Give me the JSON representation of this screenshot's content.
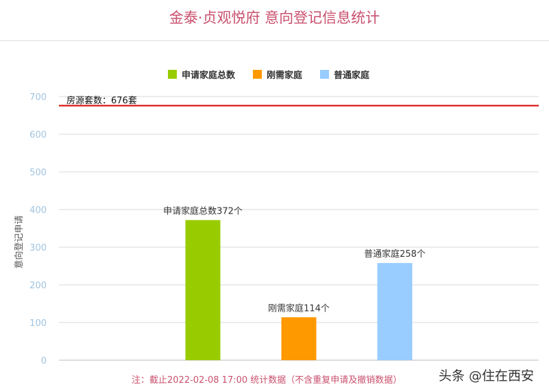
{
  "title": "金泰·贞观悦府 意向登记信息统计",
  "note": "注：截止2022-02-08 17:00 统计数据（不含重复申请及撤销数据）",
  "watermark": "头条 @住在西安",
  "chart_data": {
    "type": "bar",
    "title": "金泰·贞观悦府 意向登记信息统计",
    "ylabel": "意向登记申请",
    "ylim": [
      0,
      700
    ],
    "yticks": [
      0,
      100,
      200,
      300,
      400,
      500,
      600,
      700
    ],
    "grid": true,
    "legend_position": "top",
    "series": [
      {
        "name": "申请家庭总数",
        "value": 372,
        "label": "申请家庭总数372个",
        "color": "#99cc00"
      },
      {
        "name": "刚需家庭",
        "value": 114,
        "label": "刚需家庭114个",
        "color": "#ff9900"
      },
      {
        "name": "普通家庭",
        "value": 258,
        "label": "普通家庭258个",
        "color": "#99ccff"
      }
    ],
    "reference_line": {
      "value": 676,
      "label": "房源套数：676套",
      "color": "#e03030"
    }
  }
}
